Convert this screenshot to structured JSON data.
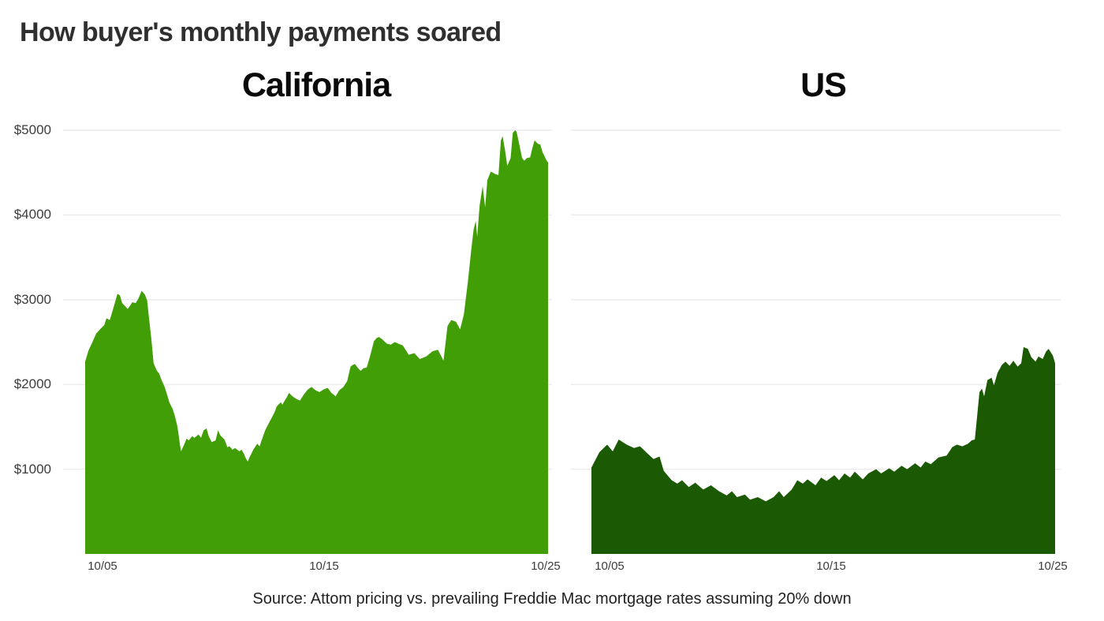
{
  "page": {
    "title": "How buyer's monthly payments soared",
    "source": "Source: Attom pricing vs. prevailing Freddie Mac mortgage rates assuming 20% down",
    "background": "#ffffff",
    "grid_color": "#ececec"
  },
  "chart_data": [
    {
      "type": "area",
      "title": "California",
      "color": "#429e07",
      "ylim": [
        0,
        5000
      ],
      "x_domain_days": [
        4.2,
        25.1
      ],
      "x_ticks": [
        {
          "day": 5,
          "label": "10/05"
        },
        {
          "day": 15,
          "label": "10/15"
        },
        {
          "day": 25,
          "label": "10/25"
        }
      ],
      "y_gridlines": [
        1000,
        2000,
        3000,
        4000,
        5000
      ],
      "y_ticks": [
        {
          "value": 5000,
          "label": "$5000"
        },
        {
          "value": 4000,
          "label": "$4000"
        },
        {
          "value": 3000,
          "label": "$3000"
        },
        {
          "value": 2000,
          "label": "$2000"
        },
        {
          "value": 1000,
          "label": "$1000"
        }
      ],
      "points": [
        [
          4.2,
          2270
        ],
        [
          4.35,
          2400
        ],
        [
          4.51,
          2490
        ],
        [
          4.7,
          2600
        ],
        [
          4.87,
          2650
        ],
        [
          5.06,
          2700
        ],
        [
          5.16,
          2780
        ],
        [
          5.31,
          2760
        ],
        [
          5.43,
          2860
        ],
        [
          5.58,
          3000
        ],
        [
          5.66,
          3070
        ],
        [
          5.77,
          3050
        ],
        [
          5.87,
          2960
        ],
        [
          6.02,
          2920
        ],
        [
          6.12,
          2890
        ],
        [
          6.23,
          2930
        ],
        [
          6.33,
          2970
        ],
        [
          6.48,
          2960
        ],
        [
          6.6,
          3010
        ],
        [
          6.75,
          3105
        ],
        [
          6.9,
          3060
        ],
        [
          7.0,
          2990
        ],
        [
          7.08,
          2790
        ],
        [
          7.19,
          2530
        ],
        [
          7.29,
          2250
        ],
        [
          7.44,
          2160
        ],
        [
          7.54,
          2130
        ],
        [
          7.65,
          2050
        ],
        [
          7.79,
          1970
        ],
        [
          7.9,
          1880
        ],
        [
          8.0,
          1790
        ],
        [
          8.15,
          1710
        ],
        [
          8.25,
          1630
        ],
        [
          8.36,
          1510
        ],
        [
          8.42,
          1410
        ],
        [
          8.48,
          1290
        ],
        [
          8.53,
          1210
        ],
        [
          8.67,
          1290
        ],
        [
          8.78,
          1360
        ],
        [
          8.88,
          1340
        ],
        [
          9.03,
          1390
        ],
        [
          9.13,
          1370
        ],
        [
          9.32,
          1410
        ],
        [
          9.43,
          1370
        ],
        [
          9.55,
          1460
        ],
        [
          9.68,
          1480
        ],
        [
          9.78,
          1390
        ],
        [
          9.91,
          1320
        ],
        [
          10.09,
          1340
        ],
        [
          10.2,
          1460
        ],
        [
          10.3,
          1400
        ],
        [
          10.49,
          1350
        ],
        [
          10.62,
          1260
        ],
        [
          10.72,
          1270
        ],
        [
          10.85,
          1230
        ],
        [
          10.97,
          1250
        ],
        [
          11.16,
          1210
        ],
        [
          11.26,
          1230
        ],
        [
          11.37,
          1180
        ],
        [
          11.43,
          1140
        ],
        [
          11.54,
          1090
        ],
        [
          11.62,
          1140
        ],
        [
          11.7,
          1180
        ],
        [
          11.79,
          1230
        ],
        [
          11.89,
          1270
        ],
        [
          11.97,
          1300
        ],
        [
          12.08,
          1270
        ],
        [
          12.14,
          1320
        ],
        [
          12.33,
          1460
        ],
        [
          12.43,
          1510
        ],
        [
          12.75,
          1670
        ],
        [
          12.85,
          1740
        ],
        [
          12.96,
          1770
        ],
        [
          13.04,
          1790
        ],
        [
          13.1,
          1760
        ],
        [
          13.21,
          1810
        ],
        [
          13.31,
          1850
        ],
        [
          13.4,
          1900
        ],
        [
          13.56,
          1860
        ],
        [
          13.73,
          1830
        ],
        [
          13.9,
          1810
        ],
        [
          14.07,
          1880
        ],
        [
          14.25,
          1940
        ],
        [
          14.42,
          1970
        ],
        [
          14.61,
          1930
        ],
        [
          14.78,
          1910
        ],
        [
          14.96,
          1940
        ],
        [
          15.15,
          1960
        ],
        [
          15.32,
          1900
        ],
        [
          15.51,
          1860
        ],
        [
          15.67,
          1930
        ],
        [
          15.86,
          1970
        ],
        [
          16.03,
          2040
        ],
        [
          16.18,
          2210
        ],
        [
          16.28,
          2230
        ],
        [
          16.38,
          2240
        ],
        [
          16.53,
          2190
        ],
        [
          16.64,
          2160
        ],
        [
          16.76,
          2190
        ],
        [
          16.91,
          2200
        ],
        [
          17.05,
          2320
        ],
        [
          17.24,
          2510
        ],
        [
          17.37,
          2550
        ],
        [
          17.47,
          2560
        ],
        [
          17.58,
          2540
        ],
        [
          17.7,
          2510
        ],
        [
          17.83,
          2480
        ],
        [
          18.0,
          2470
        ],
        [
          18.18,
          2500
        ],
        [
          18.35,
          2480
        ],
        [
          18.54,
          2460
        ],
        [
          18.81,
          2350
        ],
        [
          19.06,
          2370
        ],
        [
          19.31,
          2300
        ],
        [
          19.6,
          2330
        ],
        [
          19.88,
          2390
        ],
        [
          20.13,
          2410
        ],
        [
          20.38,
          2280
        ],
        [
          20.56,
          2690
        ],
        [
          20.73,
          2760
        ],
        [
          20.94,
          2740
        ],
        [
          21.13,
          2650
        ],
        [
          21.3,
          2830
        ],
        [
          21.48,
          3210
        ],
        [
          21.63,
          3580
        ],
        [
          21.74,
          3830
        ],
        [
          21.84,
          3930
        ],
        [
          21.9,
          3740
        ],
        [
          22.01,
          4110
        ],
        [
          22.15,
          4340
        ],
        [
          22.26,
          4090
        ],
        [
          22.36,
          4410
        ],
        [
          22.51,
          4510
        ],
        [
          22.61,
          4500
        ],
        [
          22.72,
          4480
        ],
        [
          22.86,
          4470
        ],
        [
          22.97,
          4880
        ],
        [
          23.05,
          4930
        ],
        [
          23.16,
          4760
        ],
        [
          23.26,
          4580
        ],
        [
          23.41,
          4670
        ],
        [
          23.51,
          4970
        ],
        [
          23.62,
          5000
        ],
        [
          23.68,
          4980
        ],
        [
          23.78,
          4860
        ],
        [
          23.93,
          4670
        ],
        [
          24.03,
          4640
        ],
        [
          24.14,
          4670
        ],
        [
          24.29,
          4680
        ],
        [
          24.39,
          4790
        ],
        [
          24.49,
          4880
        ],
        [
          24.64,
          4840
        ],
        [
          24.75,
          4830
        ],
        [
          24.85,
          4740
        ],
        [
          24.93,
          4700
        ],
        [
          25.04,
          4640
        ],
        [
          25.1,
          4620
        ]
      ]
    },
    {
      "type": "area",
      "title": "US",
      "color": "#1b5a02",
      "ylim": [
        0,
        5000
      ],
      "x_domain_days": [
        4.2,
        25.1
      ],
      "x_ticks": [
        {
          "day": 5,
          "label": "10/05"
        },
        {
          "day": 15,
          "label": "10/15"
        },
        {
          "day": 25,
          "label": "10/25"
        }
      ],
      "y_gridlines": [
        1000,
        2000,
        3000,
        4000,
        5000
      ],
      "y_ticks": [],
      "points": [
        [
          4.2,
          1020
        ],
        [
          4.56,
          1200
        ],
        [
          4.91,
          1290
        ],
        [
          5.16,
          1210
        ],
        [
          5.43,
          1350
        ],
        [
          5.79,
          1290
        ],
        [
          6.12,
          1250
        ],
        [
          6.39,
          1270
        ],
        [
          6.75,
          1180
        ],
        [
          7.0,
          1120
        ],
        [
          7.27,
          1150
        ],
        [
          7.46,
          980
        ],
        [
          7.82,
          870
        ],
        [
          8.07,
          830
        ],
        [
          8.28,
          870
        ],
        [
          8.59,
          790
        ],
        [
          8.88,
          840
        ],
        [
          9.24,
          760
        ],
        [
          9.59,
          810
        ],
        [
          9.95,
          740
        ],
        [
          10.3,
          690
        ],
        [
          10.53,
          740
        ],
        [
          10.76,
          670
        ],
        [
          11.12,
          700
        ],
        [
          11.35,
          640
        ],
        [
          11.7,
          670
        ],
        [
          12.06,
          620
        ],
        [
          12.41,
          670
        ],
        [
          12.66,
          740
        ],
        [
          12.87,
          670
        ],
        [
          13.23,
          760
        ],
        [
          13.48,
          870
        ],
        [
          13.73,
          830
        ],
        [
          13.94,
          880
        ],
        [
          14.3,
          810
        ],
        [
          14.55,
          900
        ],
        [
          14.8,
          860
        ],
        [
          15.15,
          930
        ],
        [
          15.36,
          870
        ],
        [
          15.61,
          950
        ],
        [
          15.86,
          900
        ],
        [
          16.07,
          970
        ],
        [
          16.43,
          880
        ],
        [
          16.68,
          950
        ],
        [
          17.03,
          1000
        ],
        [
          17.26,
          950
        ],
        [
          17.62,
          1010
        ],
        [
          17.85,
          970
        ],
        [
          18.18,
          1040
        ],
        [
          18.43,
          1000
        ],
        [
          18.79,
          1070
        ],
        [
          19.04,
          1020
        ],
        [
          19.25,
          1090
        ],
        [
          19.5,
          1060
        ],
        [
          19.85,
          1140
        ],
        [
          20.21,
          1160
        ],
        [
          20.46,
          1260
        ],
        [
          20.67,
          1290
        ],
        [
          20.92,
          1270
        ],
        [
          21.17,
          1300
        ],
        [
          21.34,
          1340
        ],
        [
          21.48,
          1350
        ],
        [
          21.69,
          1910
        ],
        [
          21.8,
          1950
        ],
        [
          21.9,
          1860
        ],
        [
          22.05,
          2050
        ],
        [
          22.24,
          2080
        ],
        [
          22.34,
          1990
        ],
        [
          22.51,
          2140
        ],
        [
          22.7,
          2230
        ],
        [
          22.86,
          2270
        ],
        [
          23.05,
          2220
        ],
        [
          23.22,
          2280
        ],
        [
          23.41,
          2210
        ],
        [
          23.57,
          2250
        ],
        [
          23.68,
          2440
        ],
        [
          23.87,
          2420
        ],
        [
          24.03,
          2320
        ],
        [
          24.22,
          2270
        ],
        [
          24.35,
          2330
        ],
        [
          24.54,
          2300
        ],
        [
          24.7,
          2390
        ],
        [
          24.81,
          2420
        ],
        [
          25.0,
          2340
        ],
        [
          25.1,
          2250
        ]
      ]
    }
  ]
}
